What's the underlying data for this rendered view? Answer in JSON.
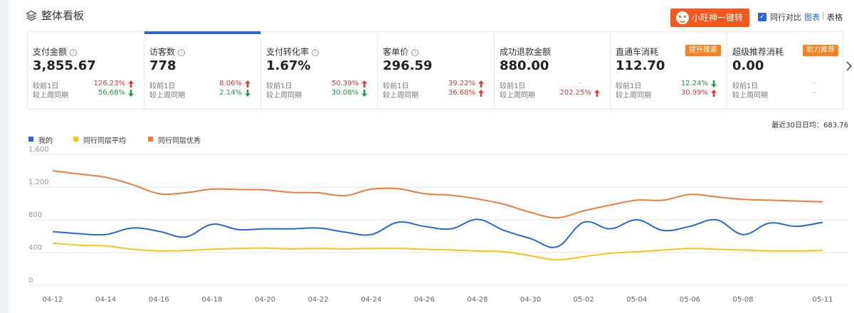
{
  "header": {
    "title": "整体看板",
    "brand_button": "小旺神一键转化",
    "compare_label": "同行对比",
    "view_chart": "图表",
    "view_sep": "|",
    "view_table": "表格"
  },
  "cards": [
    {
      "name": "支付金额",
      "help": true,
      "value": "3,855.67",
      "active": false,
      "day_label": "较前1日",
      "day_pct": "126.23%",
      "day_dir": "up",
      "week_label": "较上周同期",
      "week_pct": "56.68%",
      "week_dir": "down",
      "tag": null
    },
    {
      "name": "访客数",
      "help": true,
      "value": "778",
      "active": true,
      "day_label": "较前1日",
      "day_pct": "8.06%",
      "day_dir": "up",
      "week_label": "较上周同期",
      "week_pct": "2.14%",
      "week_dir": "down",
      "tag": null
    },
    {
      "name": "支付转化率",
      "help": true,
      "value": "1.67%",
      "active": false,
      "day_label": "较前1日",
      "day_pct": "50.39%",
      "day_dir": "up",
      "week_label": "较上周同期",
      "week_pct": "30.08%",
      "week_dir": "down",
      "tag": null
    },
    {
      "name": "客单价",
      "help": true,
      "value": "296.59",
      "active": false,
      "day_label": "较前1日",
      "day_pct": "39.22%",
      "day_dir": "up",
      "week_label": "较上周同期",
      "week_pct": "36.68%",
      "week_dir": "up",
      "tag": null
    },
    {
      "name": "成功退款金额",
      "help": false,
      "value": "880.00",
      "active": false,
      "day_label": "较前1日",
      "day_pct": "-",
      "day_dir": "none",
      "week_label": "较上周同期",
      "week_pct": "202.25%",
      "week_dir": "up",
      "tag": null
    },
    {
      "name": "直通车消耗",
      "help": false,
      "value": "112.70",
      "active": false,
      "day_label": "较前1日",
      "day_pct": "12.24%",
      "day_dir": "down",
      "week_label": "较上周同期",
      "week_pct": "30.99%",
      "week_dir": "up",
      "tag": "提升搜索"
    },
    {
      "name": "超级推荐消耗",
      "help": false,
      "value": "0.00",
      "active": false,
      "day_label": "较前1日",
      "day_pct": "-",
      "day_dir": "none",
      "week_label": "较上周同期",
      "week_pct": "-",
      "week_dir": "none",
      "tag": "助力推荐"
    }
  ],
  "chart_summary": "最近30日日均：683.76",
  "colors": {
    "mine": "#2a66d6",
    "avg": "#f5c518",
    "excellent": "#f07c3a",
    "accent": "#2a66d6",
    "brand": "#f15a1c",
    "tag": "#f7821f",
    "up": "#e0383e",
    "down": "#1f9d48"
  },
  "chart_data": {
    "type": "line",
    "title": "",
    "xlabel": "",
    "ylabel": "",
    "ylim": [
      0,
      1600
    ],
    "yticks": [
      "0",
      "400",
      "800",
      "1,200",
      "1,600"
    ],
    "xticks": [
      "04-12",
      "04-14",
      "04-16",
      "04-18",
      "04-20",
      "04-22",
      "04-24",
      "04-26",
      "04-28",
      "04-30",
      "05-02",
      "05-04",
      "05-06",
      "05-08",
      "05-11"
    ],
    "categories": [
      "04-12",
      "04-13",
      "04-14",
      "04-15",
      "04-16",
      "04-17",
      "04-18",
      "04-19",
      "04-20",
      "04-21",
      "04-22",
      "04-23",
      "04-24",
      "04-25",
      "04-26",
      "04-27",
      "04-28",
      "04-29",
      "04-30",
      "05-01",
      "05-02",
      "05-03",
      "05-04",
      "05-05",
      "05-06",
      "05-07",
      "05-08",
      "05-09",
      "05-10",
      "05-11"
    ],
    "series": [
      {
        "name": "我的",
        "color": "#2a66d6",
        "values": [
          655,
          630,
          620,
          700,
          660,
          590,
          745,
          680,
          690,
          690,
          700,
          650,
          620,
          770,
          720,
          690,
          805,
          670,
          570,
          470,
          770,
          690,
          800,
          670,
          720,
          800,
          620,
          760,
          720,
          770
        ]
      },
      {
        "name": "同行同层平均",
        "color": "#f5c518",
        "values": [
          515,
          490,
          480,
          440,
          420,
          425,
          440,
          450,
          455,
          445,
          450,
          445,
          450,
          450,
          440,
          430,
          420,
          410,
          360,
          310,
          350,
          390,
          410,
          430,
          450,
          440,
          430,
          420,
          420,
          425
        ]
      },
      {
        "name": "同行同层优秀",
        "color": "#f07c3a",
        "values": [
          1400,
          1360,
          1320,
          1230,
          1120,
          1130,
          1175,
          1170,
          1165,
          1135,
          1130,
          1095,
          1175,
          1180,
          1120,
          1100,
          1055,
          990,
          890,
          825,
          910,
          980,
          1040,
          1040,
          1110,
          1080,
          1050,
          1040,
          1030,
          1020
        ]
      }
    ]
  }
}
